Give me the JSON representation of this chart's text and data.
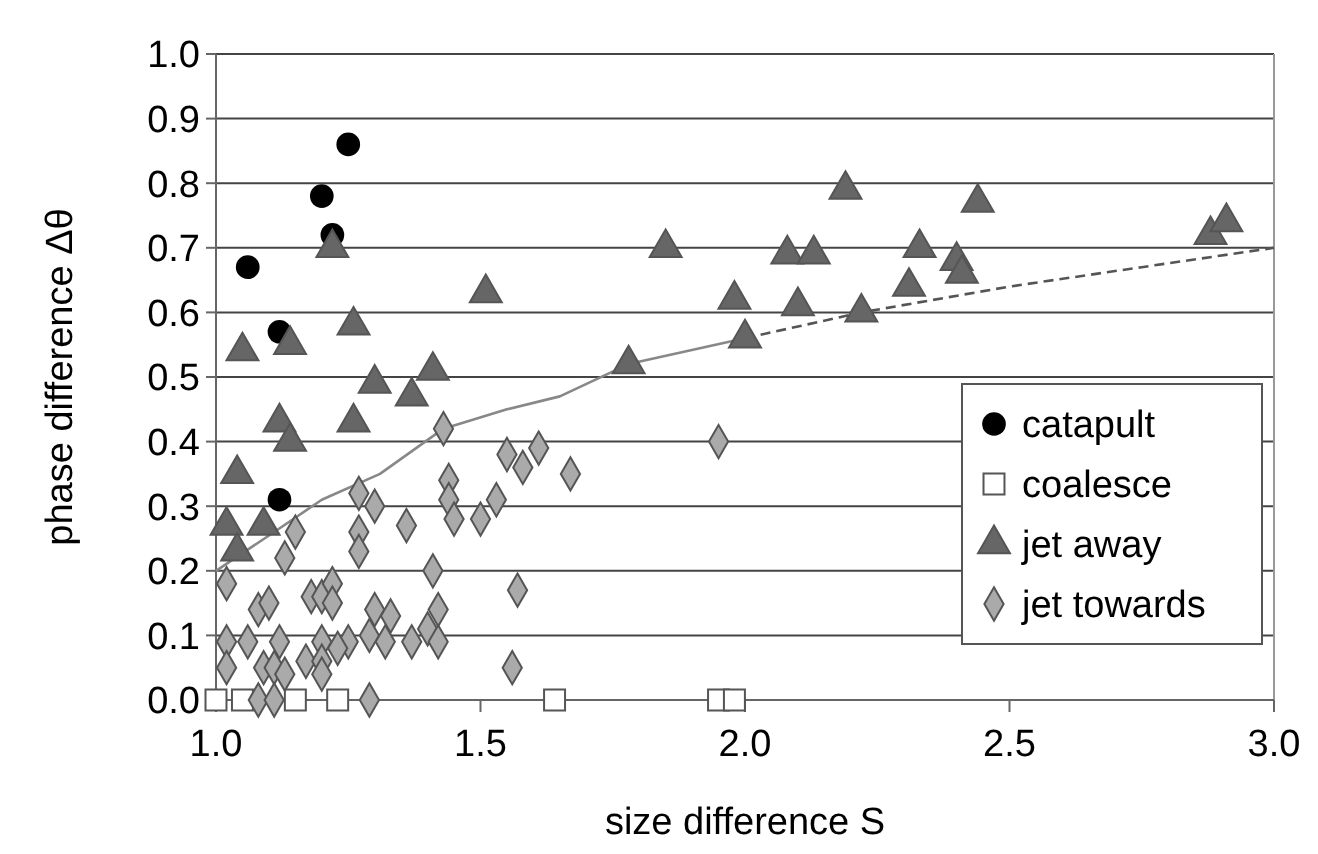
{
  "chart_data": {
    "type": "scatter",
    "xlabel": "size difference S",
    "ylabel": "phase difference Δθ",
    "xlim": [
      1.0,
      3.0
    ],
    "xticks": [
      {
        "value": 1,
        "label": "1.0"
      },
      1.5,
      {
        "value": 2,
        "label": "2.0"
      },
      2.5,
      {
        "value": 3,
        "label": "3.0"
      }
    ],
    "ylim": [
      0,
      1
    ],
    "yticks": [
      {
        "value": 0,
        "label": "0.0"
      },
      0.1,
      0.2,
      0.3,
      0.4,
      0.5,
      0.6,
      0.7,
      0.8,
      0.9,
      {
        "value": 1,
        "label": "1.0"
      }
    ],
    "grid": "y",
    "legend": "right",
    "series": [
      {
        "name": "catapult",
        "color": "#000000",
        "marker": "circle",
        "x": [
          1.25,
          1.2,
          1.22,
          1.06,
          1.12,
          1.12
        ],
        "values": [
          0.86,
          0.78,
          0.72,
          0.67,
          0.57,
          0.31
        ]
      },
      {
        "name": "coalesce",
        "color": "#ffffff",
        "marker": "square",
        "x": [
          1.0,
          1.05,
          1.15,
          1.23,
          1.64,
          1.95,
          1.98
        ],
        "values": [
          0,
          0,
          0,
          0,
          0,
          0,
          0
        ]
      },
      {
        "name": "jet away",
        "color": "#666666",
        "marker": "triangle",
        "x": [
          1.22,
          1.51,
          1.26,
          1.05,
          1.14,
          1.3,
          1.41,
          1.37,
          1.26,
          1.12,
          1.14,
          1.04,
          1.02,
          1.09,
          1.04,
          2.19,
          2.44,
          2.88,
          2.91,
          1.85,
          2.08,
          2.13,
          2.33,
          2.4,
          2.41,
          2.31,
          1.98,
          2.1,
          2.22,
          2.0,
          1.78
        ],
        "values": [
          0.7,
          0.63,
          0.58,
          0.54,
          0.55,
          0.49,
          0.51,
          0.47,
          0.43,
          0.43,
          0.4,
          0.35,
          0.27,
          0.27,
          0.23,
          0.79,
          0.77,
          0.72,
          0.74,
          0.7,
          0.69,
          0.69,
          0.7,
          0.68,
          0.66,
          0.64,
          0.62,
          0.61,
          0.6,
          0.56,
          0.52
        ]
      },
      {
        "name": "jet towards",
        "color": "#aaaaaa",
        "marker": "diamond",
        "x": [
          1.43,
          1.27,
          1.3,
          1.36,
          1.44,
          1.44,
          1.45,
          1.5,
          1.53,
          1.55,
          1.58,
          1.61,
          1.67,
          1.15,
          1.13,
          1.27,
          1.27,
          1.41,
          1.02,
          1.08,
          1.1,
          1.18,
          1.2,
          1.22,
          1.22,
          1.3,
          1.33,
          1.42,
          1.4,
          1.57,
          1.02,
          1.06,
          1.12,
          1.2,
          1.25,
          1.29,
          1.32,
          1.37,
          1.42,
          1.23,
          1.02,
          1.09,
          1.11,
          1.13,
          1.17,
          1.2,
          1.2,
          1.56,
          1.08,
          1.11,
          1.29,
          1.95
        ],
        "values": [
          0.42,
          0.32,
          0.3,
          0.27,
          0.34,
          0.31,
          0.28,
          0.28,
          0.31,
          0.38,
          0.36,
          0.39,
          0.35,
          0.26,
          0.22,
          0.26,
          0.23,
          0.2,
          0.18,
          0.14,
          0.15,
          0.16,
          0.16,
          0.18,
          0.15,
          0.14,
          0.13,
          0.14,
          0.11,
          0.17,
          0.09,
          0.09,
          0.09,
          0.09,
          0.09,
          0.1,
          0.09,
          0.09,
          0.09,
          0.08,
          0.05,
          0.05,
          0.05,
          0.04,
          0.06,
          0.06,
          0.04,
          0.05,
          0,
          0,
          0,
          0.4
        ]
      },
      {
        "type": "line",
        "color": "#888888",
        "line_style": "solid",
        "x": [
          1.0,
          1.11,
          1.2,
          1.31,
          1.43,
          1.55,
          1.65,
          1.78,
          2.0
        ],
        "values": [
          0.2,
          0.26,
          0.31,
          0.35,
          0.42,
          0.45,
          0.47,
          0.52,
          0.56
        ]
      },
      {
        "type": "line",
        "color": "#555555",
        "line_style": "dashed",
        "x": [
          2.0,
          2.22,
          2.5,
          2.75,
          3.0
        ],
        "values": [
          0.56,
          0.6,
          0.64,
          0.67,
          0.7
        ]
      }
    ]
  }
}
